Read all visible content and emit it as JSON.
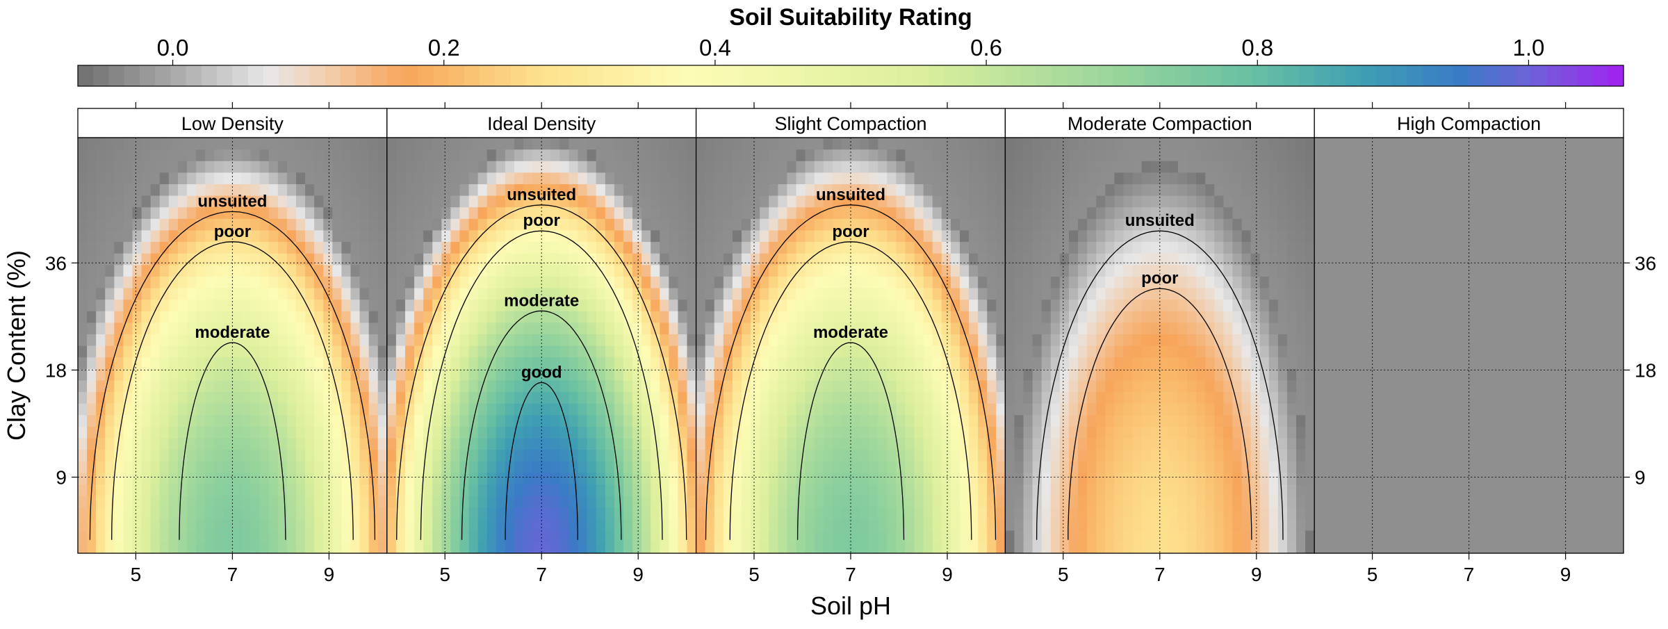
{
  "chart_data": {
    "type": "heatmap",
    "colorbar": {
      "title": "Soil Suitability Rating",
      "ticks": [
        0.0,
        0.2,
        0.4,
        0.6,
        0.8,
        1.0
      ],
      "tick_labels": [
        "0.0",
        "0.2",
        "0.4",
        "0.6",
        "0.8",
        "1.0"
      ],
      "range": [
        -0.07,
        1.07
      ],
      "color_stops": [
        {
          "v": -0.07,
          "c": "#6e6e6e"
        },
        {
          "v": 0.0,
          "c": "#a8a8a8"
        },
        {
          "v": 0.07,
          "c": "#e8e8e8"
        },
        {
          "v": 0.12,
          "c": "#f3c9a3"
        },
        {
          "v": 0.17,
          "c": "#f7a55a"
        },
        {
          "v": 0.27,
          "c": "#fde08d"
        },
        {
          "v": 0.38,
          "c": "#fdfcb6"
        },
        {
          "v": 0.55,
          "c": "#dcef9c"
        },
        {
          "v": 0.7,
          "c": "#97d49c"
        },
        {
          "v": 0.8,
          "c": "#66bfa3"
        },
        {
          "v": 0.88,
          "c": "#3e9eb3"
        },
        {
          "v": 0.95,
          "c": "#3a7bc6"
        },
        {
          "v": 1.0,
          "c": "#6d63d8"
        },
        {
          "v": 1.07,
          "c": "#a121f0"
        }
      ]
    },
    "xlabel": "Soil pH",
    "ylabel": "Clay Content (%)",
    "x_ticks": [
      5,
      7,
      9
    ],
    "x_tick_labels": [
      "5",
      "7",
      "9"
    ],
    "y_ticks": [
      9,
      18,
      36
    ],
    "y_tick_labels": [
      "9",
      "18",
      "36"
    ],
    "y_scale": "log",
    "xlim": [
      3.8,
      10.2
    ],
    "ylim": [
      5.5,
      81
    ],
    "grid": true,
    "outside_value": -0.03,
    "panels": [
      {
        "title": "Low Density",
        "peak": 0.78,
        "contours": [
          {
            "label": "unsuited",
            "level": 0.08,
            "top_y": 50.2,
            "x_half": 2.95
          },
          {
            "label": "poor",
            "level": 0.17,
            "top_y": 41.3,
            "x_half": 2.5
          },
          {
            "label": "moderate",
            "level": 0.45,
            "top_y": 21.5,
            "x_half": 1.1
          }
        ]
      },
      {
        "title": "Ideal Density",
        "peak": 1.02,
        "contours": [
          {
            "label": "unsuited",
            "level": 0.08,
            "top_y": 52.4,
            "x_half": 3.0
          },
          {
            "label": "poor",
            "level": 0.17,
            "top_y": 44.3,
            "x_half": 2.5
          },
          {
            "label": "moderate",
            "level": 0.45,
            "top_y": 26.4,
            "x_half": 1.65
          },
          {
            "label": "good",
            "level": 0.85,
            "top_y": 16.6,
            "x_half": 0.75
          }
        ]
      },
      {
        "title": "Slight Compaction",
        "peak": 0.78,
        "contours": [
          {
            "label": "unsuited",
            "level": 0.08,
            "top_y": 52.4,
            "x_half": 3.0
          },
          {
            "label": "poor",
            "level": 0.17,
            "top_y": 41.3,
            "x_half": 2.5
          },
          {
            "label": "moderate",
            "level": 0.45,
            "top_y": 21.5,
            "x_half": 1.1
          }
        ]
      },
      {
        "title": "Moderate Compaction",
        "peak": 0.3,
        "contours": [
          {
            "label": "unsuited",
            "level": 0.08,
            "top_y": 44.3,
            "x_half": 2.55
          },
          {
            "label": "poor",
            "level": 0.17,
            "top_y": 30.5,
            "x_half": 1.9
          }
        ]
      },
      {
        "title": "High Compaction",
        "peak": 0.0,
        "contours": []
      }
    ]
  }
}
